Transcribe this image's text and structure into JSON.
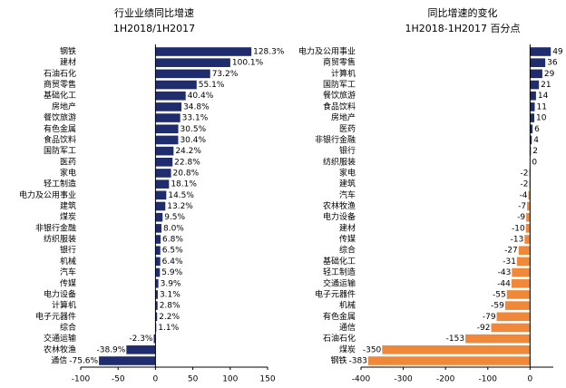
{
  "chart_data": [
    {
      "type": "bar",
      "orientation": "horizontal",
      "title": "行业业绩同比增速",
      "subtitle": "1H2018/1H2017",
      "color": "#1f2d6e",
      "categories": [
        "钢铁",
        "建材",
        "石油石化",
        "商贸零售",
        "基础化工",
        "房地产",
        "餐饮旅游",
        "有色金属",
        "食品饮料",
        "国防军工",
        "医药",
        "家电",
        "轻工制造",
        "电力及公用事业",
        "建筑",
        "煤炭",
        "非银行金融",
        "纺织服装",
        "银行",
        "机械",
        "汽车",
        "传媒",
        "电力设备",
        "计算机",
        "电子元器件",
        "综合",
        "交通运输",
        "农林牧渔",
        "通信"
      ],
      "values": [
        128.3,
        100.1,
        73.2,
        55.1,
        40.4,
        34.8,
        33.1,
        30.5,
        30.4,
        24.2,
        22.8,
        20.8,
        18.1,
        14.5,
        13.2,
        9.5,
        8.0,
        6.8,
        6.5,
        6.4,
        5.9,
        3.9,
        3.1,
        2.8,
        2.2,
        1.1,
        -2.3,
        -38.9,
        -75.6
      ],
      "value_labels": [
        "128.3%",
        "100.1%",
        "73.2%",
        "55.1%",
        "40.4%",
        "34.8%",
        "33.1%",
        "30.5%",
        "30.4%",
        "24.2%",
        "22.8%",
        "20.8%",
        "18.1%",
        "14.5%",
        "13.2%",
        "9.5%",
        "8.0%",
        "6.8%",
        "6.5%",
        "6.4%",
        "5.9%",
        "3.9%",
        "3.1%",
        "2.8%",
        "2.2%",
        "1.1%",
        "-2.3%",
        "-38.9%",
        "-75.6%"
      ],
      "xlim": [
        -100,
        150
      ],
      "xticks": [
        -100,
        -50,
        0,
        50,
        100,
        150
      ]
    },
    {
      "type": "bar",
      "orientation": "horizontal",
      "title": "同比增速的变化",
      "subtitle": "1H2018-1H2017 百分点",
      "color": "#1f2d6e",
      "negative_color": "#f0883a",
      "categories": [
        "电力及公用事业",
        "商贸零售",
        "计算机",
        "国防军工",
        "餐饮旅游",
        "食品饮料",
        "房地产",
        "医药",
        "非银行金融",
        "银行",
        "纺织服装",
        "家电",
        "建筑",
        "汽车",
        "农林牧渔",
        "电力设备",
        "建材",
        "传媒",
        "综合",
        "基础化工",
        "轻工制造",
        "交通运输",
        "电子元器件",
        "机械",
        "有色金属",
        "通信",
        "石油石化",
        "煤炭",
        "钢铁"
      ],
      "values": [
        49,
        36,
        29,
        21,
        14,
        11,
        10,
        6,
        4,
        2,
        0,
        -2,
        -2,
        -4,
        -7,
        -9,
        -10,
        -13,
        -27,
        -31,
        -43,
        -44,
        -55,
        -59,
        -79,
        -92,
        -153,
        -350,
        -383
      ],
      "xlim": [
        -400,
        55
      ],
      "xticks": [
        -400,
        -300,
        -200,
        -100,
        0
      ]
    }
  ]
}
